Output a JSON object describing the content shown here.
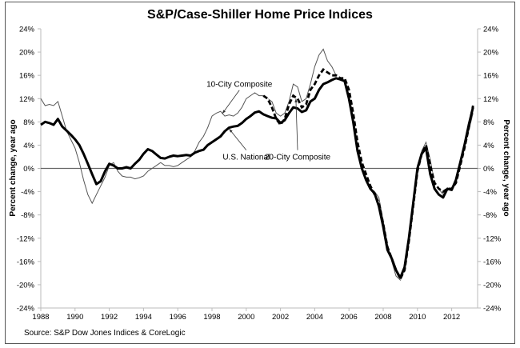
{
  "chart_data": {
    "type": "line",
    "title": "S&P/Case-Shiller Home Price Indices",
    "xlabel": "",
    "ylabel": "Percent change, year ago",
    "ylabel_right": "Percent change, year ago",
    "source": "Source: S&P Dow Jones Indices & CoreLogic",
    "xlim": [
      1988,
      2013.5
    ],
    "ylim": [
      -24,
      24
    ],
    "x_ticks": [
      1988,
      1990,
      1992,
      1994,
      1996,
      1998,
      2000,
      2002,
      2004,
      2006,
      2008,
      2010,
      2012
    ],
    "x_tick_labels": [
      "1988",
      "1990",
      "1992",
      "1994",
      "1996",
      "1998",
      "2000",
      "2002",
      "2004",
      "2006",
      "2008",
      "2010",
      "2012"
    ],
    "y_ticks": [
      24,
      20,
      16,
      12,
      8,
      4,
      0,
      -4,
      -8,
      -12,
      -16,
      -20,
      -24
    ],
    "y_tick_labels": [
      "24%",
      "20%",
      "16%",
      "12%",
      "8%",
      "4%",
      "0%",
      "-4%",
      "-8%",
      "-12%",
      "-16%",
      "-20%",
      "-24%"
    ],
    "grid": false,
    "zero_line": true,
    "legend": "none (inline annotations)",
    "annotations": [
      {
        "text": "10-City Composite",
        "series": "10-City Composite",
        "text_at": [
          1999.6,
          14.0
        ],
        "arrow_to": [
          1998.6,
          9.4
        ]
      },
      {
        "text": "U.S. National",
        "series": "U.S. National",
        "text_at": [
          2000.0,
          1.5
        ],
        "arrow_to": [
          1999.0,
          6.8
        ]
      },
      {
        "text": "20-City Composite",
        "series": "20-City Composite",
        "text_at": [
          2003.0,
          1.5
        ],
        "arrow_to": [
          2002.9,
          12.0
        ]
      }
    ],
    "series": [
      {
        "name": "U.S. National",
        "style": "thick-solid",
        "color": "#000000",
        "x": [
          1988.0,
          1988.25,
          1988.5,
          1988.75,
          1989.0,
          1989.25,
          1989.5,
          1989.75,
          1990.0,
          1990.25,
          1990.5,
          1990.75,
          1991.0,
          1991.25,
          1991.5,
          1991.75,
          1992.0,
          1992.25,
          1992.5,
          1992.75,
          1993.0,
          1993.25,
          1993.5,
          1993.75,
          1994.0,
          1994.25,
          1994.5,
          1994.75,
          1995.0,
          1995.25,
          1995.5,
          1995.75,
          1996.0,
          1996.25,
          1996.5,
          1996.75,
          1997.0,
          1997.25,
          1997.5,
          1997.75,
          1998.0,
          1998.25,
          1998.5,
          1998.75,
          1999.0,
          1999.25,
          1999.5,
          1999.75,
          2000.0,
          2000.25,
          2000.5,
          2000.75,
          2001.0,
          2001.25,
          2001.5,
          2001.75,
          2002.0,
          2002.25,
          2002.5,
          2002.75,
          2003.0,
          2003.25,
          2003.5,
          2003.75,
          2004.0,
          2004.25,
          2004.5,
          2004.75,
          2005.0,
          2005.25,
          2005.5,
          2005.75,
          2006.0,
          2006.25,
          2006.5,
          2006.75,
          2007.0,
          2007.25,
          2007.5,
          2007.75,
          2008.0,
          2008.25,
          2008.5,
          2008.75,
          2009.0,
          2009.25,
          2009.5,
          2009.75,
          2010.0,
          2010.25,
          2010.5,
          2010.75,
          2011.0,
          2011.25,
          2011.5,
          2011.75,
          2012.0,
          2012.25,
          2012.5,
          2012.75,
          2013.0,
          2013.25
        ],
        "values": [
          7.5,
          8.0,
          7.8,
          7.5,
          8.5,
          7.2,
          6.5,
          5.8,
          5.0,
          4.0,
          2.5,
          0.8,
          -1.0,
          -2.7,
          -2.2,
          -0.5,
          0.8,
          0.5,
          0.0,
          0.0,
          0.2,
          0.0,
          0.8,
          1.5,
          2.5,
          3.3,
          3.0,
          2.4,
          1.8,
          1.7,
          2.0,
          2.2,
          2.1,
          2.2,
          2.3,
          2.2,
          2.7,
          3.0,
          3.2,
          4.0,
          4.5,
          5.0,
          5.5,
          6.4,
          7.0,
          7.2,
          7.3,
          7.8,
          8.5,
          9.0,
          9.6,
          9.8,
          9.3,
          9.0,
          8.7,
          8.6,
          7.8,
          8.3,
          9.5,
          10.5,
          10.3,
          9.7,
          10.0,
          11.5,
          12.0,
          13.5,
          14.5,
          14.8,
          15.2,
          15.5,
          15.3,
          15.0,
          12.0,
          8.0,
          3.0,
          0.0,
          -2.0,
          -3.5,
          -4.3,
          -6.5,
          -10.0,
          -14.0,
          -15.5,
          -17.5,
          -18.8,
          -17.0,
          -12.0,
          -6.0,
          0.0,
          2.5,
          3.5,
          -1.0,
          -3.5,
          -4.5,
          -5.0,
          -3.5,
          -3.7,
          -2.0,
          1.0,
          4.0,
          7.5,
          10.5
        ]
      },
      {
        "name": "10-City Composite",
        "style": "thin-solid",
        "color": "#444444",
        "x": [
          1988.0,
          1988.25,
          1988.5,
          1988.75,
          1989.0,
          1989.25,
          1989.5,
          1989.75,
          1990.0,
          1990.25,
          1990.5,
          1990.75,
          1991.0,
          1991.25,
          1991.5,
          1991.75,
          1992.0,
          1992.25,
          1992.5,
          1992.75,
          1993.0,
          1993.25,
          1993.5,
          1993.75,
          1994.0,
          1994.25,
          1994.5,
          1994.75,
          1995.0,
          1995.25,
          1995.5,
          1995.75,
          1996.0,
          1996.25,
          1996.5,
          1996.75,
          1997.0,
          1997.25,
          1997.5,
          1997.75,
          1998.0,
          1998.25,
          1998.5,
          1998.75,
          1999.0,
          1999.25,
          1999.5,
          1999.75,
          2000.0,
          2000.25,
          2000.5,
          2000.75,
          2001.0,
          2001.25,
          2001.5,
          2001.75,
          2002.0,
          2002.25,
          2002.5,
          2002.75,
          2003.0,
          2003.25,
          2003.5,
          2003.75,
          2004.0,
          2004.25,
          2004.5,
          2004.75,
          2005.0,
          2005.25,
          2005.5,
          2005.75,
          2006.0,
          2006.25,
          2006.5,
          2006.75,
          2007.0,
          2007.25,
          2007.5,
          2007.75,
          2008.0,
          2008.25,
          2008.5,
          2008.75,
          2009.0,
          2009.25,
          2009.5,
          2009.75,
          2010.0,
          2010.25,
          2010.5,
          2010.75,
          2011.0,
          2011.25,
          2011.5,
          2011.75,
          2012.0,
          2012.25,
          2012.5,
          2012.75,
          2013.0,
          2013.25
        ],
        "values": [
          12.0,
          10.8,
          11.0,
          10.8,
          11.5,
          9.0,
          6.5,
          5.0,
          3.5,
          1.0,
          -2.0,
          -4.5,
          -6.0,
          -4.5,
          -3.0,
          -1.5,
          0.5,
          1.0,
          -0.5,
          -1.3,
          -1.5,
          -1.5,
          -1.8,
          -1.6,
          -1.3,
          -0.5,
          0.0,
          0.5,
          1.0,
          0.5,
          0.5,
          0.3,
          0.5,
          1.0,
          1.5,
          2.0,
          3.0,
          4.5,
          5.5,
          7.0,
          9.0,
          9.5,
          9.8,
          9.0,
          9.2,
          9.0,
          9.5,
          10.5,
          12.0,
          12.5,
          13.0,
          12.5,
          12.5,
          12.0,
          11.5,
          9.5,
          9.0,
          9.5,
          11.5,
          14.5,
          14.0,
          11.5,
          12.0,
          14.5,
          17.5,
          19.5,
          20.5,
          18.5,
          17.5,
          16.0,
          15.5,
          15.5,
          12.5,
          8.5,
          3.5,
          0.0,
          -2.0,
          -3.5,
          -4.0,
          -5.0,
          -9.0,
          -13.0,
          -16.0,
          -18.5,
          -19.2,
          -17.5,
          -12.5,
          -6.0,
          0.5,
          3.0,
          4.5,
          1.5,
          -2.5,
          -3.5,
          -4.5,
          -3.5,
          -3.5,
          -2.5,
          0.5,
          3.5,
          6.5,
          9.5
        ]
      },
      {
        "name": "20-City Composite",
        "style": "thick-dashed",
        "color": "#000000",
        "x": [
          2001.0,
          2001.25,
          2001.5,
          2001.75,
          2002.0,
          2002.25,
          2002.5,
          2002.75,
          2003.0,
          2003.25,
          2003.5,
          2003.75,
          2004.0,
          2004.25,
          2004.5,
          2004.75,
          2005.0,
          2005.25,
          2005.5,
          2005.75,
          2006.0,
          2006.25,
          2006.5,
          2006.75,
          2007.0,
          2007.25,
          2007.5,
          2007.75,
          2008.0,
          2008.25,
          2008.5,
          2008.75,
          2009.0,
          2009.25,
          2009.5,
          2009.75,
          2010.0,
          2010.25,
          2010.5,
          2010.75,
          2011.0,
          2011.25,
          2011.5,
          2011.75,
          2012.0,
          2012.25,
          2012.5,
          2012.75,
          2013.0,
          2013.25
        ],
        "values": [
          12.5,
          12.0,
          10.5,
          8.5,
          7.5,
          8.5,
          11.0,
          12.5,
          12.0,
          10.5,
          11.0,
          13.5,
          14.5,
          16.0,
          17.0,
          16.5,
          16.0,
          16.0,
          15.5,
          15.5,
          13.5,
          9.5,
          4.5,
          1.0,
          -1.0,
          -3.0,
          -4.5,
          -6.0,
          -9.5,
          -13.5,
          -15.5,
          -17.5,
          -19.0,
          -17.5,
          -12.5,
          -6.5,
          -0.5,
          2.5,
          4.0,
          0.5,
          -2.5,
          -3.5,
          -4.0,
          -3.5,
          -3.5,
          -2.5,
          0.5,
          3.5,
          7.0,
          10.8
        ]
      }
    ]
  }
}
